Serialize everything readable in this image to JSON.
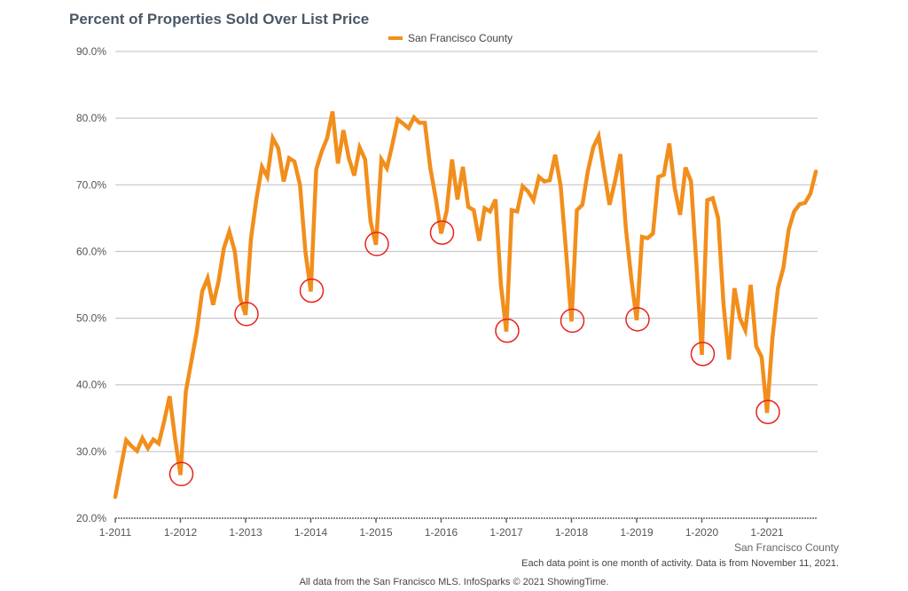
{
  "chart_data": {
    "type": "line",
    "title": "Percent of Properties Sold Over List Price",
    "legend": {
      "placement": "top-center",
      "entries": [
        "San Francisco County"
      ]
    },
    "ylim": [
      20,
      90
    ],
    "yticks": [
      "20.0%",
      "30.0%",
      "40.0%",
      "50.0%",
      "60.0%",
      "70.0%",
      "80.0%",
      "90.0%"
    ],
    "ytick_values": [
      20,
      30,
      40,
      50,
      60,
      70,
      80,
      90
    ],
    "xticks": [
      "1-2011",
      "1-2012",
      "1-2013",
      "1-2014",
      "1-2015",
      "1-2016",
      "1-2017",
      "1-2018",
      "1-2019",
      "1-2020",
      "1-2021"
    ],
    "x_start": "2011-01",
    "x_end": "2021-10",
    "grid": "horizontal",
    "series": [
      {
        "name": "San Francisco County",
        "color": "#F28E1C",
        "values": [
          23.2,
          27.5,
          31.7,
          30.8,
          30.1,
          32.0,
          30.5,
          31.8,
          31.2,
          34.5,
          38.3,
          32.0,
          26.5,
          39.0,
          43.5,
          48.0,
          54.0,
          56.0,
          52.0,
          55.5,
          60.5,
          63.0,
          60.0,
          53.0,
          50.5,
          62.0,
          68.0,
          72.7,
          71.2,
          77.0,
          75.5,
          70.5,
          74.0,
          73.5,
          70.0,
          60.0,
          54.0,
          72.3,
          75.0,
          77.0,
          81.0,
          73.2,
          78.2,
          74.0,
          71.4,
          75.6,
          73.8,
          64.5,
          61.0,
          73.8,
          72.5,
          76.0,
          79.8,
          79.2,
          78.5,
          80.1,
          79.3,
          79.3,
          72.5,
          68.0,
          62.7,
          66.0,
          73.8,
          67.8,
          72.7,
          66.7,
          66.2,
          61.6,
          66.5,
          66.0,
          67.8,
          55.0,
          48.0,
          66.2,
          66.0,
          69.8,
          69.0,
          67.7,
          71.2,
          70.5,
          70.7,
          74.5,
          69.8,
          60.0,
          49.5,
          66.2,
          67.0,
          72.0,
          75.6,
          77.3,
          72.0,
          67.0,
          70.5,
          74.6,
          63.5,
          56.0,
          49.7,
          62.2,
          62.0,
          62.7,
          71.2,
          71.5,
          76.2,
          69.5,
          65.5,
          72.6,
          70.5,
          58.0,
          44.5,
          67.7,
          68.0,
          65.0,
          52.0,
          43.8,
          54.5,
          50.0,
          48.2,
          55.0,
          45.8,
          44.2,
          35.8,
          47.0,
          54.5,
          57.5,
          63.3,
          66.0,
          67.1,
          67.3,
          68.7,
          72.0
        ]
      }
    ],
    "annotations": {
      "type": "circled-lows",
      "color": "#E8211B",
      "points": [
        {
          "date": "2012-01",
          "value": 26.5
        },
        {
          "date": "2013-01",
          "value": 50.5
        },
        {
          "date": "2014-01",
          "value": 54.0
        },
        {
          "date": "2015-01",
          "value": 61.0
        },
        {
          "date": "2016-01",
          "value": 62.7
        },
        {
          "date": "2017-01",
          "value": 48.0
        },
        {
          "date": "2018-01",
          "value": 49.5
        },
        {
          "date": "2019-01",
          "value": 49.7
        },
        {
          "date": "2020-01",
          "value": 44.5
        },
        {
          "date": "2021-01",
          "value": 35.8
        }
      ]
    },
    "xaxis_caption": "San Francisco County",
    "footnote": "Each data point is one month of activity. Data is from November 11, 2021.",
    "source": "All data from the San Francisco MLS. InfoSparks © 2021 ShowingTime."
  }
}
